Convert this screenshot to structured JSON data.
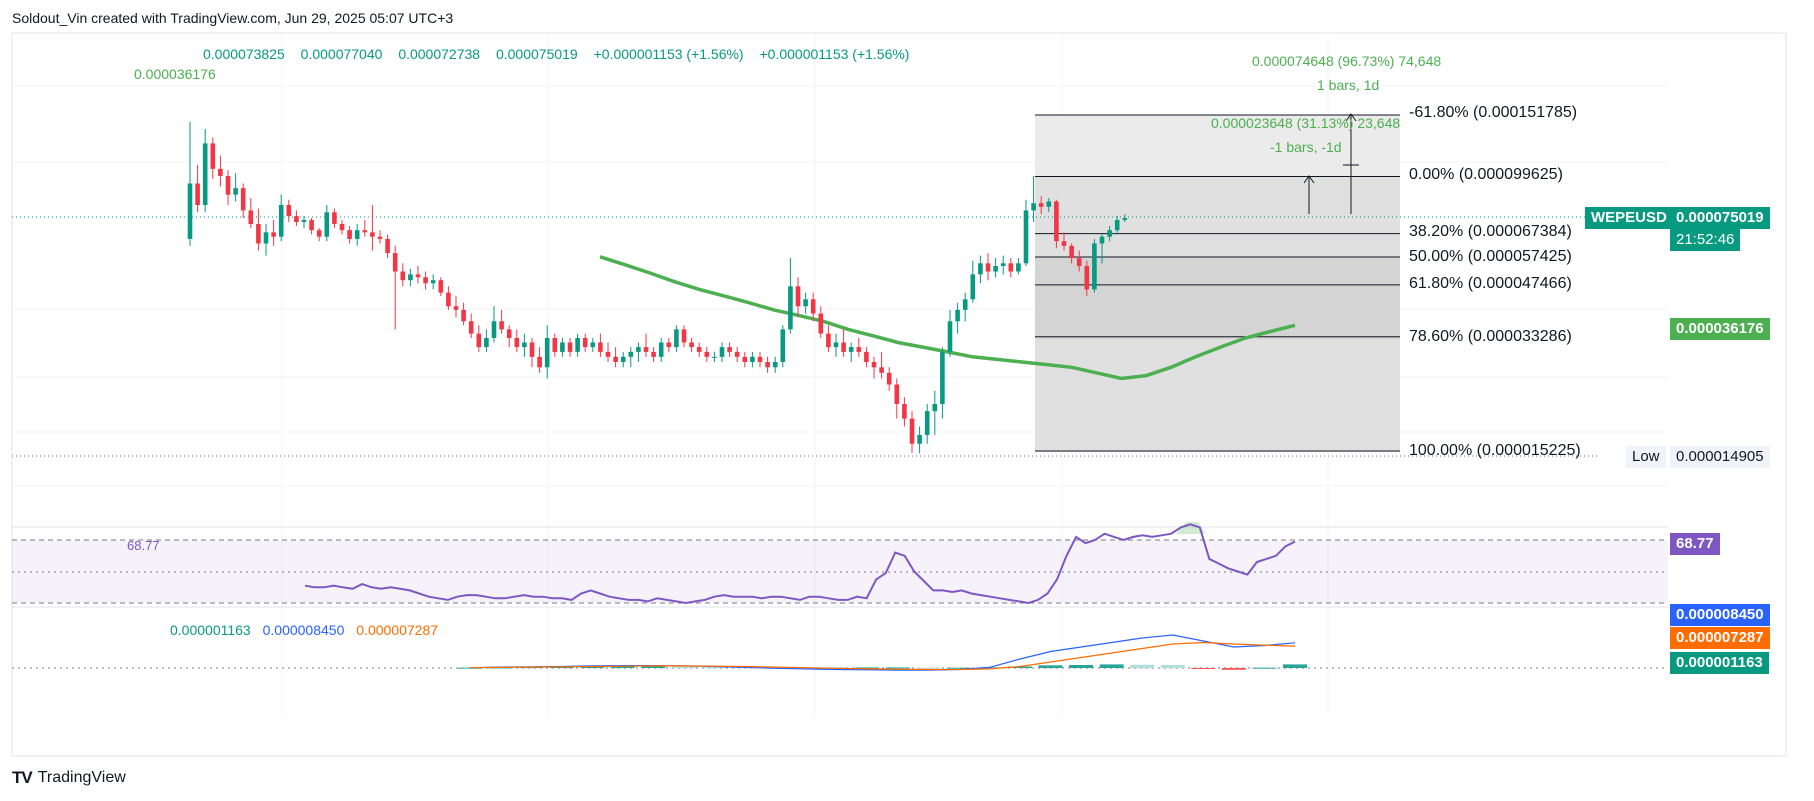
{
  "header": {
    "text": "Soldout_Vin created with TradingView.com, Jun 29, 2025 05:07 UTC+3"
  },
  "footer": {
    "logo": "TV",
    "brand": "TradingView"
  },
  "legend": {
    "open": "0.000073825",
    "high": "0.000077040",
    "low": "0.000072738",
    "close": "0.000075019",
    "change1": "+0.000001153 (+1.56%)",
    "change2": "+0.000001153 (+1.56%)"
  },
  "labels": {
    "high_marker": "0.000036176",
    "rsi_value": "68.77",
    "macd_hist": "0.000001163",
    "macd_line": "0.000008450",
    "macd_signal": "0.000007287"
  },
  "measure": {
    "top_line1": "0.000074648 (96.73%) 74,648",
    "top_line2": "1 bars, 1d",
    "mid_line1": "0.000023648 (31.13%) 23,648",
    "mid_line2": "-1 bars, -1d"
  },
  "fib_levels": [
    {
      "label": "-61.80% (0.000151785)",
      "value": 0.000151785
    },
    {
      "label": "0.00% (0.000099625)",
      "value": 9.9625e-05
    },
    {
      "label": "38.20% (0.000067384)",
      "value": 6.7384e-05
    },
    {
      "label": "50.00% (0.000057425)",
      "value": 5.7425e-05
    },
    {
      "label": "61.80% (0.000047466)",
      "value": 4.7466e-05
    },
    {
      "label": "78.60% (0.000033286)",
      "value": 3.3286e-05
    },
    {
      "label": "100.00% (0.000015225)",
      "value": 1.5225e-05
    }
  ],
  "price_tags": {
    "symbol": "WEPEUSD",
    "price": "0.000075019",
    "countdown": "21:52:46",
    "ma": "0.000036176",
    "low_word": "Low",
    "low": "0.000014905",
    "rsi": "68.77",
    "macd_line": "0.000008450",
    "macd_signal": "0.000007287",
    "macd_hist": "0.000001163"
  },
  "colors": {
    "up": "#089981",
    "down": "#f23645",
    "ma": "#4caf50",
    "rsi": "#7e57c2",
    "macd": "#2962ff",
    "signal": "#ff6d00",
    "price_tag": "#089981"
  },
  "chart_data": {
    "type": "candlestick",
    "symbol": "WEPEUSD",
    "y_scale": "log",
    "candles": [
      [
        6.5e-05,
        0.000145,
        6.2e-05,
        9.5e-05
      ],
      [
        9.5e-05,
        0.000108,
        7.8e-05,
        8.2e-05
      ],
      [
        8.2e-05,
        0.000138,
        7.8e-05,
        0.000125
      ],
      [
        0.000125,
        0.00013,
        9.8e-05,
        0.000105
      ],
      [
        0.000105,
        0.000115,
        9.3e-05,
        0.0001
      ],
      [
        0.0001,
        0.000104,
        8.2e-05,
        8.8e-05
      ],
      [
        8.8e-05,
        0.000102,
        8.4e-05,
        9.2e-05
      ],
      [
        9.2e-05,
        9.5e-05,
        7.5e-05,
        7.9e-05
      ],
      [
        7.9e-05,
        8.6e-05,
        7e-05,
        7.2e-05
      ],
      [
        7.2e-05,
        8e-05,
        6e-05,
        6.3e-05
      ],
      [
        6.3e-05,
        7.2e-05,
        5.8e-05,
        6.8e-05
      ],
      [
        6.8e-05,
        7.4e-05,
        6.2e-05,
        6.6e-05
      ],
      [
        6.6e-05,
        8.8e-05,
        6.4e-05,
        8.2e-05
      ],
      [
        8.2e-05,
        8.5e-05,
        7.3e-05,
        7.6e-05
      ],
      [
        7.6e-05,
        7.9e-05,
        7.1e-05,
        7.3e-05
      ],
      [
        7.3e-05,
        7.6e-05,
        7e-05,
        7.4e-05
      ],
      [
        7.4e-05,
        7.5e-05,
        6.7e-05,
        6.9e-05
      ],
      [
        6.9e-05,
        7e-05,
        6.4e-05,
        6.6e-05
      ],
      [
        6.6e-05,
        8.2e-05,
        6.4e-05,
        7.8e-05
      ],
      [
        7.8e-05,
        8e-05,
        7e-05,
        7.2e-05
      ],
      [
        7.2e-05,
        7.4e-05,
        6.7e-05,
        6.9e-05
      ],
      [
        6.9e-05,
        7.1e-05,
        6.3e-05,
        6.5e-05
      ],
      [
        6.5e-05,
        7.2e-05,
        6.2e-05,
        6.9e-05
      ],
      [
        6.9e-05,
        7.4e-05,
        6.6e-05,
        6.8e-05
      ],
      [
        6.8e-05,
        8.2e-05,
        6e-05,
        6.6e-05
      ],
      [
        6.6e-05,
        6.9e-05,
        6.3e-05,
        6.5e-05
      ],
      [
        6.5e-05,
        6.7e-05,
        5.7e-05,
        5.9e-05
      ],
      [
        5.9e-05,
        6.2e-05,
        3.5e-05,
        5.2e-05
      ],
      [
        5.2e-05,
        5.5e-05,
        4.7e-05,
        4.9e-05
      ],
      [
        4.9e-05,
        5.3e-05,
        4.7e-05,
        5.1e-05
      ],
      [
        5.1e-05,
        5.4e-05,
        4.8e-05,
        5e-05
      ],
      [
        5e-05,
        5.2e-05,
        4.6e-05,
        4.8e-05
      ],
      [
        4.8e-05,
        5.1e-05,
        4.6e-05,
        4.9e-05
      ],
      [
        4.9e-05,
        5e-05,
        4.4e-05,
        4.5e-05
      ],
      [
        4.5e-05,
        4.7e-05,
        4e-05,
        4.1e-05
      ],
      [
        4.1e-05,
        4.4e-05,
        3.8e-05,
        4e-05
      ],
      [
        4e-05,
        4.2e-05,
        3.6e-05,
        3.7e-05
      ],
      [
        3.7e-05,
        3.9e-05,
        3.3e-05,
        3.4e-05
      ],
      [
        3.4e-05,
        3.6e-05,
        3e-05,
        3.1e-05
      ],
      [
        3.1e-05,
        3.5e-05,
        3e-05,
        3.3e-05
      ],
      [
        3.3e-05,
        4.1e-05,
        3.2e-05,
        3.7e-05
      ],
      [
        3.7e-05,
        4e-05,
        3.4e-05,
        3.5e-05
      ],
      [
        3.5e-05,
        3.6e-05,
        3.1e-05,
        3.3e-05
      ],
      [
        3.3e-05,
        3.5e-05,
        3e-05,
        3.1e-05
      ],
      [
        3.1e-05,
        3.4e-05,
        2.9e-05,
        3.2e-05
      ],
      [
        3.2e-05,
        3.3e-05,
        2.7e-05,
        2.9e-05
      ],
      [
        2.9e-05,
        3.1e-05,
        2.6e-05,
        2.7e-05
      ],
      [
        2.7e-05,
        3.6e-05,
        2.5e-05,
        3.3e-05
      ],
      [
        3.3e-05,
        3.4e-05,
        2.9e-05,
        3e-05
      ],
      [
        3e-05,
        3.3e-05,
        2.9e-05,
        3.2e-05
      ],
      [
        3.2e-05,
        3.3e-05,
        2.9e-05,
        3e-05
      ],
      [
        3e-05,
        3.4e-05,
        2.9e-05,
        3.3e-05
      ],
      [
        3.3e-05,
        3.4e-05,
        3e-05,
        3.1e-05
      ],
      [
        3.1e-05,
        3.3e-05,
        3e-05,
        3.2e-05
      ],
      [
        3.2e-05,
        3.4e-05,
        2.9e-05,
        3e-05
      ],
      [
        3e-05,
        3.2e-05,
        2.8e-05,
        2.9e-05
      ],
      [
        2.9e-05,
        3.1e-05,
        2.7e-05,
        2.8e-05
      ],
      [
        2.8e-05,
        3e-05,
        2.7e-05,
        2.9e-05
      ],
      [
        2.9e-05,
        3.1e-05,
        2.7e-05,
        3e-05
      ],
      [
        3e-05,
        3.2e-05,
        2.8e-05,
        3.1e-05
      ],
      [
        3.1e-05,
        3.4e-05,
        2.9e-05,
        3e-05
      ],
      [
        3e-05,
        3.1e-05,
        2.8e-05,
        2.9e-05
      ],
      [
        2.9e-05,
        3.3e-05,
        2.8e-05,
        3.2e-05
      ],
      [
        3.2e-05,
        3.3e-05,
        3e-05,
        3.1e-05
      ],
      [
        3.1e-05,
        3.6e-05,
        3e-05,
        3.5e-05
      ],
      [
        3.5e-05,
        3.6e-05,
        3.1e-05,
        3.2e-05
      ],
      [
        3.2e-05,
        3.3e-05,
        3e-05,
        3.1e-05
      ],
      [
        3.1e-05,
        3.2e-05,
        2.9e-05,
        3e-05
      ],
      [
        3e-05,
        3.1e-05,
        2.8e-05,
        2.9e-05
      ],
      [
        2.9e-05,
        3e-05,
        2.8e-05,
        2.9e-05
      ],
      [
        2.9e-05,
        3.2e-05,
        2.8e-05,
        3.1e-05
      ],
      [
        3.1e-05,
        3.2e-05,
        2.9e-05,
        3e-05
      ],
      [
        3e-05,
        3.1e-05,
        2.8e-05,
        2.9e-05
      ],
      [
        2.9e-05,
        3e-05,
        2.7e-05,
        2.8e-05
      ],
      [
        2.8e-05,
        3e-05,
        2.7e-05,
        2.9e-05
      ],
      [
        2.9e-05,
        3e-05,
        2.7e-05,
        2.8e-05
      ],
      [
        2.8e-05,
        2.9e-05,
        2.6e-05,
        2.7e-05
      ],
      [
        2.7e-05,
        2.9e-05,
        2.6e-05,
        2.8e-05
      ],
      [
        2.8e-05,
        3.6e-05,
        2.7e-05,
        3.5e-05
      ],
      [
        3.5e-05,
        5.7e-05,
        3.4e-05,
        4.7e-05
      ],
      [
        4.7e-05,
        5e-05,
        3.8e-05,
        4.1e-05
      ],
      [
        4.1e-05,
        4.5e-05,
        3.9e-05,
        4.3e-05
      ],
      [
        4.3e-05,
        4.5e-05,
        3.7e-05,
        3.9e-05
      ],
      [
        3.9e-05,
        4.1e-05,
        3.3e-05,
        3.4e-05
      ],
      [
        3.4e-05,
        3.6e-05,
        3e-05,
        3.1e-05
      ],
      [
        3.1e-05,
        3.4e-05,
        2.9e-05,
        3.2e-05
      ],
      [
        3.2e-05,
        3.5e-05,
        2.9e-05,
        3e-05
      ],
      [
        3e-05,
        3.2e-05,
        2.8e-05,
        3.1e-05
      ],
      [
        3.1e-05,
        3.3e-05,
        2.9e-05,
        3e-05
      ],
      [
        3e-05,
        3.1e-05,
        2.7e-05,
        2.8e-05
      ],
      [
        2.8e-05,
        2.9e-05,
        2.5e-05,
        2.7e-05
      ],
      [
        2.7e-05,
        3e-05,
        2.5e-05,
        2.6e-05
      ],
      [
        2.6e-05,
        2.7e-05,
        2.3e-05,
        2.4e-05
      ],
      [
        2.4e-05,
        2.5e-05,
        1.9e-05,
        2.1e-05
      ],
      [
        2.1e-05,
        2.2e-05,
        1.8e-05,
        1.9e-05
      ],
      [
        1.9e-05,
        2e-05,
        1.5e-05,
        1.6e-05
      ],
      [
        1.6e-05,
        1.8e-05,
        1.5e-05,
        1.7e-05
      ],
      [
        1.7e-05,
        2.1e-05,
        1.6e-05,
        2e-05
      ],
      [
        2e-05,
        2.3e-05,
        1.7e-05,
        2.1e-05
      ],
      [
        2.1e-05,
        3.1e-05,
        1.9e-05,
        3e-05
      ],
      [
        3e-05,
        4e-05,
        2.9e-05,
        3.7e-05
      ],
      [
        3.7e-05,
        4.2e-05,
        3.4e-05,
        4e-05
      ],
      [
        4e-05,
        4.5e-05,
        3.7e-05,
        4.3e-05
      ],
      [
        4.3e-05,
        5.6e-05,
        4.2e-05,
        5.1e-05
      ],
      [
        5.1e-05,
        5.8e-05,
        4.8e-05,
        5.5e-05
      ],
      [
        5.5e-05,
        5.9e-05,
        4.9e-05,
        5.2e-05
      ],
      [
        5.2e-05,
        5.7e-05,
        5e-05,
        5.4e-05
      ],
      [
        5.4e-05,
        5.8e-05,
        5.1e-05,
        5.5e-05
      ],
      [
        5.5e-05,
        5.7e-05,
        5e-05,
        5.2e-05
      ],
      [
        5.2e-05,
        5.7e-05,
        5.1e-05,
        5.5e-05
      ],
      [
        5.5e-05,
        8.5e-05,
        5.4e-05,
        7.9e-05
      ],
      [
        7.9e-05,
        0.0001,
        7.3e-05,
        8.3e-05
      ],
      [
        8.3e-05,
        8.7e-05,
        7.7e-05,
        8.1e-05
      ],
      [
        8.1e-05,
        8.6e-05,
        7.8e-05,
        8.4e-05
      ],
      [
        8.4e-05,
        8.5e-05,
        6.1e-05,
        6.4e-05
      ],
      [
        6.4e-05,
        6.8e-05,
        6e-05,
        6.2e-05
      ],
      [
        6.2e-05,
        6.3e-05,
        5.5e-05,
        5.7e-05
      ],
      [
        5.7e-05,
        6e-05,
        5.2e-05,
        5.4e-05
      ],
      [
        5.4e-05,
        5.6e-05,
        4.4e-05,
        4.6e-05
      ],
      [
        4.6e-05,
        6.5e-05,
        4.5e-05,
        6.3e-05
      ],
      [
        6.3e-05,
        6.7e-05,
        5.5e-05,
        6.6e-05
      ],
      [
        6.6e-05,
        7.1e-05,
        6.4e-05,
        6.9e-05
      ],
      [
        6.9e-05,
        7.6e-05,
        6.7e-05,
        7.4e-05
      ],
      [
        7.4e-05,
        7.7e-05,
        7.3e-05,
        7.5e-05
      ]
    ],
    "ma_line": [
      5.75e-05,
      5.45e-05,
      5.15e-05,
      4.85e-05,
      4.6e-05,
      4.4e-05,
      4.2e-05,
      4e-05,
      3.85e-05,
      3.7e-05,
      3.5e-05,
      3.35e-05,
      3.2e-05,
      3.1e-05,
      3e-05,
      2.9e-05,
      2.85e-05,
      2.8e-05,
      2.75e-05,
      2.7e-05,
      2.6e-05,
      2.5e-05,
      2.55e-05,
      2.7e-05,
      2.9e-05,
      3.1e-05,
      3.3e-05,
      3.45e-05,
      3.6e-05
    ],
    "rsi": [
      41,
      40,
      40,
      41,
      40,
      39,
      42,
      40,
      39,
      40,
      39,
      38,
      36,
      34,
      33,
      32,
      34,
      35,
      35,
      34,
      33,
      33,
      34,
      35,
      34,
      34,
      33,
      33,
      32,
      36,
      38,
      36,
      34,
      33,
      32,
      32,
      31,
      33,
      32,
      31,
      30,
      31,
      32,
      34,
      35,
      34,
      34,
      34,
      33,
      34,
      34,
      33,
      32,
      34,
      34,
      33,
      32,
      32,
      34,
      33,
      45,
      49,
      62,
      60,
      50,
      44,
      38,
      38,
      37,
      38,
      36,
      35,
      34,
      33,
      32,
      31,
      30,
      32,
      36,
      45,
      60,
      72,
      68,
      70,
      74,
      72,
      70,
      72,
      73,
      72,
      73,
      74,
      78,
      80,
      78,
      58,
      55,
      52,
      50,
      48,
      56,
      58,
      60,
      66,
      69
    ],
    "rsi_range": [
      0,
      100
    ],
    "macd_line": [
      1e-07,
      3e-07,
      4e-07,
      5e-07,
      7e-07,
      8e-07,
      8e-07,
      7e-07,
      5e-07,
      2e-07,
      -1e-07,
      -3e-07,
      -5e-07,
      -6e-07,
      -7e-07,
      -7e-07,
      -5e-07,
      2e-07,
      3e-06,
      5.5e-06,
      7e-06,
      8.5e-06,
      1e-05,
      1.1e-05,
      9e-06,
      7e-06,
      7.5e-06,
      8.4e-06
    ],
    "macd_signal": [
      1e-07,
      2e-07,
      3e-07,
      4e-07,
      5e-07,
      6e-07,
      7e-07,
      7e-07,
      6e-07,
      5e-07,
      3e-07,
      1e-07,
      -1e-07,
      -3e-07,
      -4e-07,
      -5e-07,
      -5e-07,
      -3e-07,
      5e-07,
      2e-06,
      3.5e-06,
      5e-06,
      6.5e-06,
      8e-06,
      8.5e-06,
      8e-06,
      7.6e-06,
      7.3e-06
    ],
    "macd_hist": [
      1e-07,
      2e-07,
      3e-07,
      4e-07,
      5e-07,
      6e-07,
      6e-07,
      5e-07,
      4e-07,
      3e-07,
      2e-07,
      1e-07,
      1e-07,
      2e-07,
      2e-07,
      1e-07,
      1e-07,
      2e-07,
      5e-07,
      9e-07,
      1e-06,
      1.2e-06,
      1.1e-06,
      1e-06,
      -3e-07,
      -6e-07,
      1e-07,
      1.2e-06
    ]
  }
}
